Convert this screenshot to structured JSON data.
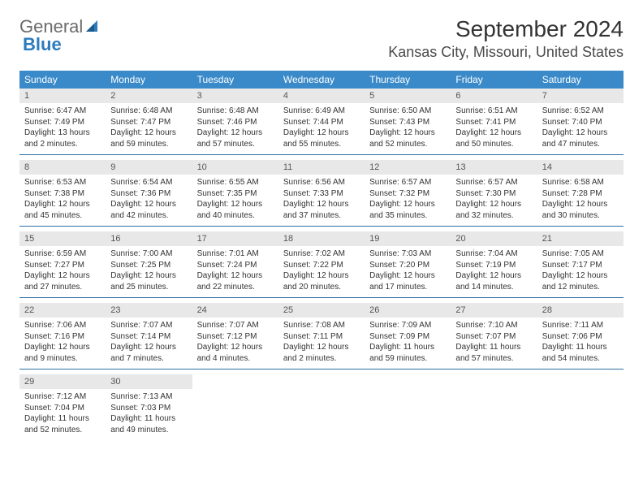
{
  "logo": {
    "text1": "General",
    "text2": "Blue"
  },
  "title": "September 2024",
  "location": "Kansas City, Missouri, United States",
  "colors": {
    "header_bg": "#3a8ac9",
    "header_text": "#ffffff",
    "daynum_bg": "#e8e8e8",
    "daynum_text": "#555555",
    "body_text": "#333333",
    "week_divider": "#2f6fa3",
    "logo_gray": "#6b6b6b",
    "logo_blue": "#2b7bbf"
  },
  "dayheaders": [
    "Sunday",
    "Monday",
    "Tuesday",
    "Wednesday",
    "Thursday",
    "Friday",
    "Saturday"
  ],
  "weeks": [
    [
      {
        "num": "1",
        "sunrise": "Sunrise: 6:47 AM",
        "sunset": "Sunset: 7:49 PM",
        "daylight": "Daylight: 13 hours and 2 minutes."
      },
      {
        "num": "2",
        "sunrise": "Sunrise: 6:48 AM",
        "sunset": "Sunset: 7:47 PM",
        "daylight": "Daylight: 12 hours and 59 minutes."
      },
      {
        "num": "3",
        "sunrise": "Sunrise: 6:48 AM",
        "sunset": "Sunset: 7:46 PM",
        "daylight": "Daylight: 12 hours and 57 minutes."
      },
      {
        "num": "4",
        "sunrise": "Sunrise: 6:49 AM",
        "sunset": "Sunset: 7:44 PM",
        "daylight": "Daylight: 12 hours and 55 minutes."
      },
      {
        "num": "5",
        "sunrise": "Sunrise: 6:50 AM",
        "sunset": "Sunset: 7:43 PM",
        "daylight": "Daylight: 12 hours and 52 minutes."
      },
      {
        "num": "6",
        "sunrise": "Sunrise: 6:51 AM",
        "sunset": "Sunset: 7:41 PM",
        "daylight": "Daylight: 12 hours and 50 minutes."
      },
      {
        "num": "7",
        "sunrise": "Sunrise: 6:52 AM",
        "sunset": "Sunset: 7:40 PM",
        "daylight": "Daylight: 12 hours and 47 minutes."
      }
    ],
    [
      {
        "num": "8",
        "sunrise": "Sunrise: 6:53 AM",
        "sunset": "Sunset: 7:38 PM",
        "daylight": "Daylight: 12 hours and 45 minutes."
      },
      {
        "num": "9",
        "sunrise": "Sunrise: 6:54 AM",
        "sunset": "Sunset: 7:36 PM",
        "daylight": "Daylight: 12 hours and 42 minutes."
      },
      {
        "num": "10",
        "sunrise": "Sunrise: 6:55 AM",
        "sunset": "Sunset: 7:35 PM",
        "daylight": "Daylight: 12 hours and 40 minutes."
      },
      {
        "num": "11",
        "sunrise": "Sunrise: 6:56 AM",
        "sunset": "Sunset: 7:33 PM",
        "daylight": "Daylight: 12 hours and 37 minutes."
      },
      {
        "num": "12",
        "sunrise": "Sunrise: 6:57 AM",
        "sunset": "Sunset: 7:32 PM",
        "daylight": "Daylight: 12 hours and 35 minutes."
      },
      {
        "num": "13",
        "sunrise": "Sunrise: 6:57 AM",
        "sunset": "Sunset: 7:30 PM",
        "daylight": "Daylight: 12 hours and 32 minutes."
      },
      {
        "num": "14",
        "sunrise": "Sunrise: 6:58 AM",
        "sunset": "Sunset: 7:28 PM",
        "daylight": "Daylight: 12 hours and 30 minutes."
      }
    ],
    [
      {
        "num": "15",
        "sunrise": "Sunrise: 6:59 AM",
        "sunset": "Sunset: 7:27 PM",
        "daylight": "Daylight: 12 hours and 27 minutes."
      },
      {
        "num": "16",
        "sunrise": "Sunrise: 7:00 AM",
        "sunset": "Sunset: 7:25 PM",
        "daylight": "Daylight: 12 hours and 25 minutes."
      },
      {
        "num": "17",
        "sunrise": "Sunrise: 7:01 AM",
        "sunset": "Sunset: 7:24 PM",
        "daylight": "Daylight: 12 hours and 22 minutes."
      },
      {
        "num": "18",
        "sunrise": "Sunrise: 7:02 AM",
        "sunset": "Sunset: 7:22 PM",
        "daylight": "Daylight: 12 hours and 20 minutes."
      },
      {
        "num": "19",
        "sunrise": "Sunrise: 7:03 AM",
        "sunset": "Sunset: 7:20 PM",
        "daylight": "Daylight: 12 hours and 17 minutes."
      },
      {
        "num": "20",
        "sunrise": "Sunrise: 7:04 AM",
        "sunset": "Sunset: 7:19 PM",
        "daylight": "Daylight: 12 hours and 14 minutes."
      },
      {
        "num": "21",
        "sunrise": "Sunrise: 7:05 AM",
        "sunset": "Sunset: 7:17 PM",
        "daylight": "Daylight: 12 hours and 12 minutes."
      }
    ],
    [
      {
        "num": "22",
        "sunrise": "Sunrise: 7:06 AM",
        "sunset": "Sunset: 7:16 PM",
        "daylight": "Daylight: 12 hours and 9 minutes."
      },
      {
        "num": "23",
        "sunrise": "Sunrise: 7:07 AM",
        "sunset": "Sunset: 7:14 PM",
        "daylight": "Daylight: 12 hours and 7 minutes."
      },
      {
        "num": "24",
        "sunrise": "Sunrise: 7:07 AM",
        "sunset": "Sunset: 7:12 PM",
        "daylight": "Daylight: 12 hours and 4 minutes."
      },
      {
        "num": "25",
        "sunrise": "Sunrise: 7:08 AM",
        "sunset": "Sunset: 7:11 PM",
        "daylight": "Daylight: 12 hours and 2 minutes."
      },
      {
        "num": "26",
        "sunrise": "Sunrise: 7:09 AM",
        "sunset": "Sunset: 7:09 PM",
        "daylight": "Daylight: 11 hours and 59 minutes."
      },
      {
        "num": "27",
        "sunrise": "Sunrise: 7:10 AM",
        "sunset": "Sunset: 7:07 PM",
        "daylight": "Daylight: 11 hours and 57 minutes."
      },
      {
        "num": "28",
        "sunrise": "Sunrise: 7:11 AM",
        "sunset": "Sunset: 7:06 PM",
        "daylight": "Daylight: 11 hours and 54 minutes."
      }
    ],
    [
      {
        "num": "29",
        "sunrise": "Sunrise: 7:12 AM",
        "sunset": "Sunset: 7:04 PM",
        "daylight": "Daylight: 11 hours and 52 minutes."
      },
      {
        "num": "30",
        "sunrise": "Sunrise: 7:13 AM",
        "sunset": "Sunset: 7:03 PM",
        "daylight": "Daylight: 11 hours and 49 minutes."
      },
      null,
      null,
      null,
      null,
      null
    ]
  ]
}
